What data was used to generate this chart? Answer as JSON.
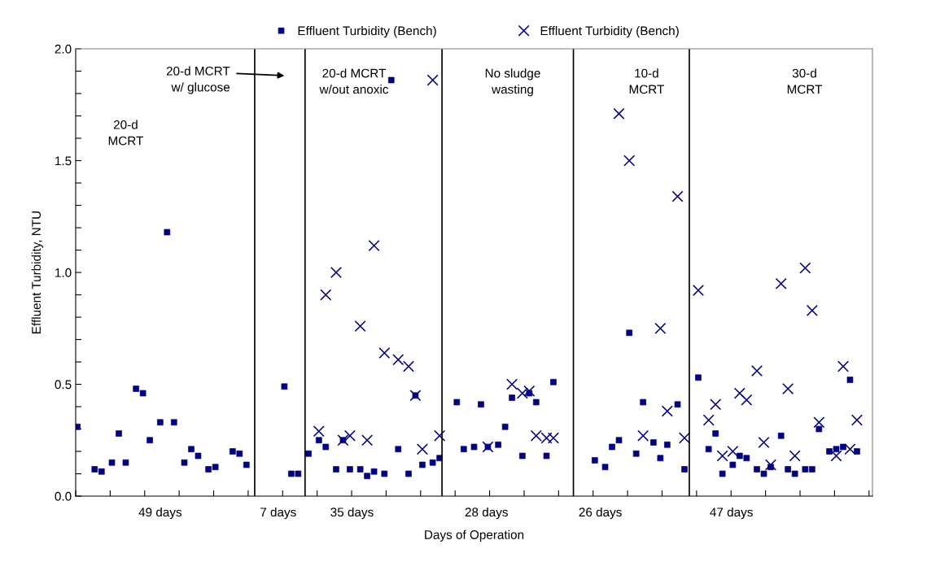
{
  "chart_data": {
    "type": "scatter",
    "xlabel": "Days of Operation",
    "ylabel": "Effluent Turbidity, NTU",
    "categories": [
      null,
      null,
      null,
      null,
      null,
      null,
      null,
      null,
      null,
      null,
      null,
      null,
      null,
      null,
      null,
      null,
      null,
      null,
      null,
      null,
      null,
      null,
      null,
      null,
      null,
      null,
      null,
      null,
      null,
      null,
      null,
      null,
      null,
      null,
      null,
      null,
      null,
      null,
      null,
      null,
      null,
      null,
      null,
      null,
      null,
      null,
      null,
      null,
      null,
      null,
      null,
      null,
      null,
      null,
      null,
      null,
      null,
      null,
      null,
      null,
      null,
      null,
      null,
      null,
      null,
      null,
      null,
      null,
      null,
      null,
      null,
      null,
      null,
      null,
      null,
      null,
      null,
      null,
      null,
      null,
      null,
      null,
      null,
      null,
      null,
      null,
      null,
      null,
      null,
      null,
      null,
      null,
      null,
      null,
      null,
      null,
      null,
      null,
      null,
      null,
      null,
      null,
      null,
      null,
      null,
      null,
      null,
      null,
      null,
      null,
      null,
      null,
      null,
      null,
      null,
      null,
      null,
      null,
      null,
      null,
      null,
      null,
      null,
      null,
      null,
      null,
      null,
      null,
      null,
      null,
      null,
      null,
      null,
      null,
      null,
      null,
      null,
      null,
      null,
      null,
      null,
      null,
      null,
      null,
      null,
      null,
      null,
      null,
      null,
      null,
      null,
      null,
      null,
      null,
      null,
      null,
      null,
      null,
      null,
      null,
      null,
      null,
      null,
      null,
      null,
      null,
      null,
      null,
      null,
      null,
      null,
      null,
      null,
      null,
      null,
      null,
      null,
      null,
      null,
      null,
      null,
      null,
      null,
      null,
      null,
      null,
      null,
      null,
      null,
      null,
      null,
      null,
      null,
      null,
      null,
      null,
      null,
      null,
      null,
      null,
      null,
      null,
      null,
      null,
      null,
      null,
      null,
      null,
      null,
      null,
      null,
      null,
      null,
      null,
      null,
      null,
      null,
      null,
      null,
      null,
      null,
      null,
      null,
      null,
      null,
      null,
      null,
      null,
      null,
      null,
      null
    ],
    "ylim": [
      0,
      2
    ],
    "yticks": [
      {
        "value": 0,
        "label": "0.0"
      },
      {
        "value": 0.1,
        "label": null
      },
      {
        "value": 0.2,
        "label": null
      },
      {
        "value": 0.3,
        "label": null
      },
      {
        "value": 0.4,
        "label": null
      },
      {
        "value": 0.5,
        "label": "0.5"
      },
      {
        "value": 0.6,
        "label": null
      },
      {
        "value": 0.7,
        "label": null
      },
      {
        "value": 0.8,
        "label": null
      },
      {
        "value": 0.9,
        "label": null
      },
      {
        "value": 1.0,
        "label": "1.0"
      },
      {
        "value": 1.1,
        "label": null
      },
      {
        "value": 1.2,
        "label": null
      },
      {
        "value": 1.3,
        "label": null
      },
      {
        "value": 1.4,
        "label": null
      },
      {
        "value": 1.5,
        "label": "1.5"
      },
      {
        "value": 1.6,
        "label": null
      },
      {
        "value": 1.7,
        "label": null
      },
      {
        "value": 1.8,
        "label": null
      },
      {
        "value": 1.9,
        "label": null
      },
      {
        "value": 2.0,
        "label": "2.0"
      }
    ],
    "tick_labels": "y",
    "legend": "top",
    "series": [
      {
        "name": "Effluent Turbidity (Bench)",
        "color": "#000080",
        "marker": "square",
        "values": [
          0.31,
          null,
          null,
          null,
          null,
          0.12,
          null,
          0.11,
          null,
          null,
          0.15,
          null,
          0.28,
          null,
          0.15,
          null,
          null,
          0.48,
          null,
          0.46,
          null,
          0.25,
          null,
          null,
          0.33,
          null,
          1.18,
          null,
          0.33,
          null,
          null,
          0.15,
          null,
          0.21,
          null,
          0.18,
          null,
          null,
          0.12,
          null,
          0.13,
          null,
          null,
          null,
          null,
          0.2,
          null,
          0.19,
          null,
          0.14,
          null,
          null,
          null,
          null,
          null,
          null,
          null,
          null,
          null,
          null,
          0.49,
          null,
          0.1,
          null,
          0.1,
          null,
          null,
          0.19,
          null,
          null,
          0.25,
          null,
          0.22,
          null,
          null,
          0.12,
          null,
          0.25,
          null,
          0.12,
          null,
          null,
          0.12,
          null,
          0.09,
          null,
          0.11,
          null,
          null,
          0.1,
          null,
          1.86,
          null,
          0.21,
          null,
          null,
          0.1,
          null,
          0.45,
          null,
          0.14,
          null,
          null,
          0.15,
          null,
          0.17,
          null,
          null,
          null,
          null,
          0.42,
          null,
          0.21,
          null,
          null,
          0.22,
          null,
          0.41,
          null,
          0.22,
          null,
          null,
          0.23,
          null,
          0.31,
          null,
          0.44,
          null,
          null,
          0.18,
          null,
          0.46,
          null,
          0.42,
          null,
          null,
          0.18,
          null,
          0.51,
          null,
          null,
          null,
          null,
          null,
          null,
          null,
          null,
          null,
          null,
          null,
          0.16,
          null,
          null,
          0.13,
          null,
          0.22,
          null,
          0.25,
          null,
          null,
          0.73,
          null,
          0.19,
          null,
          0.42,
          null,
          null,
          0.24,
          null,
          0.17,
          null,
          0.23,
          null,
          null,
          0.41,
          null,
          0.12,
          null,
          null,
          null,
          0.53,
          null,
          null,
          0.21,
          null,
          0.28,
          null,
          0.1,
          null,
          null,
          0.14,
          null,
          0.18,
          null,
          0.17,
          null,
          null,
          0.12,
          null,
          0.1,
          null,
          0.13,
          null,
          null,
          0.27,
          null,
          0.12,
          null,
          0.1,
          null,
          null,
          0.12,
          null,
          0.12,
          null,
          0.3,
          null,
          null,
          0.2,
          null,
          0.21,
          null,
          0.22,
          null,
          0.52,
          null,
          0.2,
          null,
          null,
          null,
          null
        ]
      },
      {
        "name": "Effluent Turbidity (Bench)",
        "color": "#000080",
        "marker": "cross",
        "values": [
          null,
          null,
          null,
          null,
          null,
          null,
          null,
          null,
          null,
          null,
          null,
          null,
          null,
          null,
          null,
          null,
          null,
          null,
          null,
          null,
          null,
          null,
          null,
          null,
          null,
          null,
          null,
          null,
          null,
          null,
          null,
          null,
          null,
          null,
          null,
          null,
          null,
          null,
          null,
          null,
          null,
          null,
          null,
          null,
          null,
          null,
          null,
          null,
          null,
          null,
          null,
          null,
          null,
          null,
          null,
          null,
          null,
          null,
          null,
          null,
          null,
          null,
          null,
          null,
          null,
          null,
          null,
          null,
          null,
          null,
          0.29,
          null,
          0.9,
          null,
          null,
          1.0,
          null,
          0.25,
          null,
          0.27,
          null,
          null,
          0.76,
          null,
          0.25,
          null,
          1.12,
          null,
          null,
          0.64,
          null,
          null,
          null,
          0.61,
          null,
          null,
          0.58,
          null,
          0.45,
          null,
          0.21,
          null,
          null,
          1.86,
          null,
          0.27,
          null,
          null,
          null,
          null,
          null,
          null,
          null,
          null,
          null,
          null,
          null,
          null,
          null,
          0.22,
          null,
          null,
          null,
          null,
          null,
          null,
          0.5,
          null,
          null,
          0.46,
          null,
          0.47,
          null,
          0.27,
          null,
          null,
          0.26,
          null,
          0.26,
          null,
          null,
          null,
          null,
          null,
          null,
          null,
          null,
          null,
          null,
          null,
          null,
          null,
          null,
          null,
          null,
          null,
          null,
          1.71,
          null,
          null,
          1.5,
          null,
          null,
          null,
          0.27,
          null,
          null,
          null,
          null,
          0.75,
          null,
          0.38,
          null,
          null,
          1.34,
          null,
          0.26,
          null,
          null,
          null,
          0.92,
          null,
          null,
          0.34,
          null,
          0.41,
          null,
          0.18,
          null,
          null,
          0.2,
          null,
          0.46,
          null,
          0.43,
          null,
          null,
          0.56,
          null,
          0.24,
          null,
          0.14,
          null,
          null,
          0.95,
          null,
          0.48,
          null,
          0.18,
          null,
          null,
          1.02,
          null,
          0.83,
          null,
          0.33,
          null,
          null,
          null,
          null,
          0.18,
          null,
          0.58,
          null,
          0.21,
          null,
          0.34,
          null,
          null,
          null,
          null
        ]
      }
    ],
    "annotations": [
      "20-d\nMCRT",
      "20-d MCRT\nw/ glucose",
      "20-d MCRT\nw/out anoxic",
      "No sludge\nwasting",
      "10-d\nMCRT",
      "30-d\nMCRT",
      "49 days",
      "7 days",
      "35 days",
      "28 days",
      "26 days",
      "47 days"
    ]
  }
}
